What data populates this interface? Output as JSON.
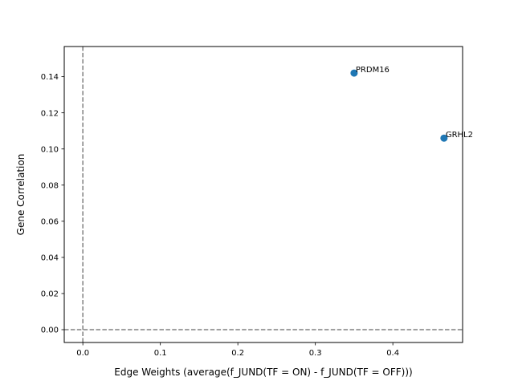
{
  "chart_data": {
    "type": "scatter",
    "title": "",
    "xlabel": "Edge Weights (average(f_JUND(TF = ON) - f_JUND(TF = OFF)))",
    "ylabel": "Gene Correlation",
    "xlim": [
      -0.024,
      0.49
    ],
    "ylim": [
      -0.0071,
      0.1567
    ],
    "x_ticks": [
      0.0,
      0.1,
      0.2,
      0.3,
      0.4
    ],
    "x_tick_labels": [
      "0.0",
      "0.1",
      "0.2",
      "0.3",
      "0.4"
    ],
    "y_ticks": [
      0.0,
      0.02,
      0.04,
      0.06,
      0.08,
      0.1,
      0.12,
      0.14
    ],
    "y_tick_labels": [
      "0.00",
      "0.02",
      "0.04",
      "0.06",
      "0.08",
      "0.10",
      "0.12",
      "0.14"
    ],
    "reference_lines": {
      "x": 0,
      "y": 0,
      "style": "dashed",
      "color": "#808080"
    },
    "grid": false,
    "marker_color": "#1f77b4",
    "points": [
      {
        "label": "PRDM16",
        "x": 0.35,
        "y": 0.142
      },
      {
        "label": "GRHL2",
        "x": 0.466,
        "y": 0.106
      }
    ]
  }
}
